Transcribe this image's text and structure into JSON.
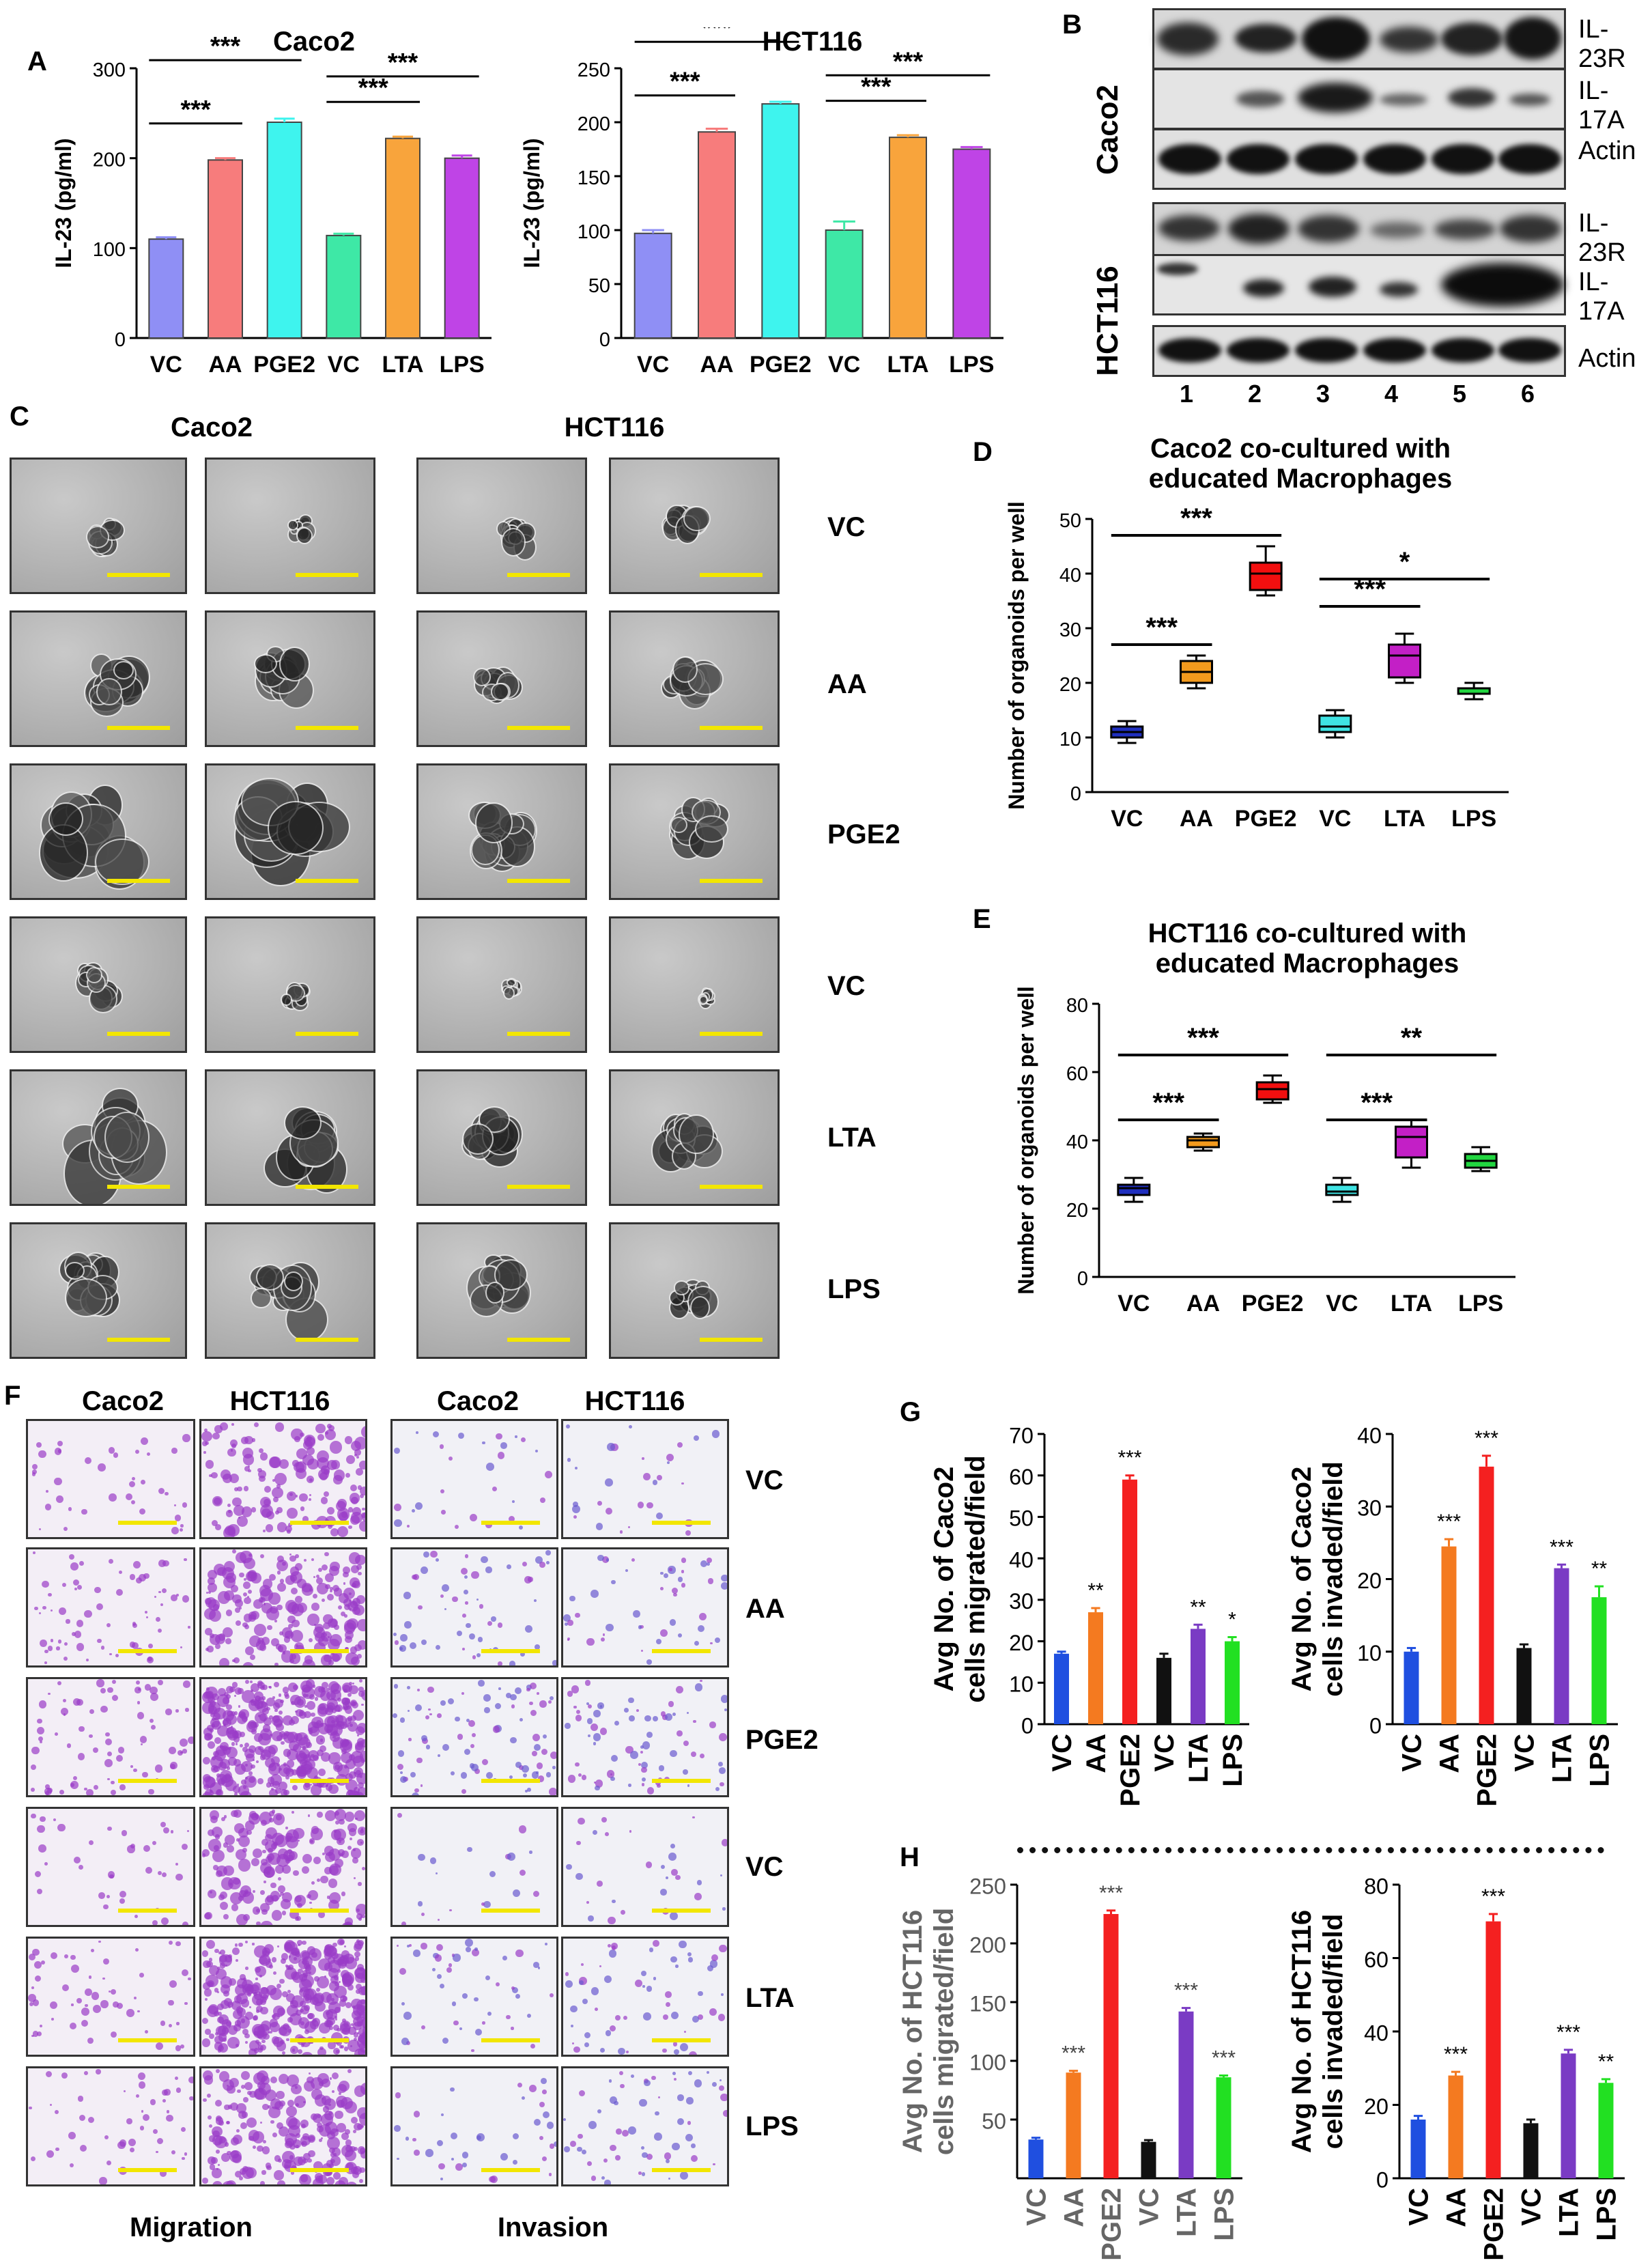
{
  "panel_labels": {
    "A": "A",
    "B": "B",
    "C": "C",
    "D": "D",
    "E": "E",
    "F": "F",
    "G": "G",
    "H": "H"
  },
  "panelC": {
    "col_labels": [
      "Caco2",
      "HCT116"
    ],
    "row_labels": [
      "VC",
      "AA",
      "PGE2",
      "VC",
      "LTA",
      "LPS"
    ]
  },
  "panelF": {
    "col_labels": [
      "Caco2",
      "HCT116",
      "Caco2",
      "HCT116"
    ],
    "row_labels": [
      "VC",
      "AA",
      "PGE2",
      "VC",
      "LTA",
      "LPS"
    ],
    "bottom_labels": [
      "Migration",
      "Invasion"
    ]
  },
  "panelB": {
    "cell_labels": [
      "Caco2",
      "HCT116"
    ],
    "caco2_bands": [
      "IL-23R",
      "IL-17A",
      "Actin"
    ],
    "hct116_bands": [
      "IL-23R",
      "IL-17A",
      "Actin"
    ],
    "lanes": [
      "1",
      "2",
      "3",
      "4",
      "5",
      "6"
    ]
  },
  "colors": {
    "scalebar": "#f2e600",
    "blot_band": "#1a1a1a"
  },
  "chart_data": [
    {
      "id": "A1",
      "type": "bar",
      "title": "Caco2",
      "xlabel": "",
      "ylabel": "IL-23 (pg/ml)",
      "categories": [
        "VC",
        "AA",
        "PGE2",
        "VC",
        "LTA",
        "LPS"
      ],
      "values": [
        110,
        198,
        240,
        114,
        222,
        200
      ],
      "errors": [
        2,
        2,
        4,
        2,
        2,
        3
      ],
      "colors": [
        "#8f8ff5",
        "#f77c7c",
        "#3ef4ee",
        "#3ee8a6",
        "#f8a43c",
        "#bf44e6"
      ],
      "ylim": [
        0,
        300
      ],
      "yticks": [
        0,
        100,
        200,
        300
      ],
      "sig": [
        {
          "from": 0,
          "to": 1,
          "label": "***",
          "level": 0
        },
        {
          "from": 0,
          "to": 2,
          "label": "***",
          "level": 1
        },
        {
          "from": 3,
          "to": 4,
          "label": "***",
          "level": 0
        },
        {
          "from": 3,
          "to": 5,
          "label": "***",
          "level": 1
        }
      ]
    },
    {
      "id": "A2",
      "type": "bar",
      "title": "HCT116",
      "xlabel": "",
      "ylabel": "IL-23 (pg/ml)",
      "categories": [
        "VC",
        "AA",
        "PGE2",
        "VC",
        "LTA",
        "LPS"
      ],
      "values": [
        97,
        191,
        217,
        100,
        186,
        175
      ],
      "errors": [
        3,
        3,
        2,
        8,
        2,
        2
      ],
      "colors": [
        "#8f8ff5",
        "#f77c7c",
        "#3ef4ee",
        "#3ee8a6",
        "#f8a43c",
        "#bf44e6"
      ],
      "ylim": [
        0,
        250
      ],
      "yticks": [
        0,
        50,
        100,
        150,
        200,
        250
      ],
      "sig": [
        {
          "from": 0,
          "to": 1,
          "label": "***",
          "level": 0
        },
        {
          "from": 0,
          "to": 2,
          "label": "***",
          "level": 1
        },
        {
          "from": 3,
          "to": 4,
          "label": "***",
          "level": 0
        },
        {
          "from": 3,
          "to": 5,
          "label": "***",
          "level": 1
        }
      ]
    },
    {
      "id": "D",
      "type": "box",
      "title": "Caco2 co-cultured with educated Macrophages",
      "title_lines": [
        "Caco2 co-cultured with",
        "educated Macrophages"
      ],
      "xlabel": "",
      "ylabel": "Number of organoids per well",
      "categories": [
        "VC",
        "AA",
        "PGE2",
        "VC",
        "LTA",
        "LPS"
      ],
      "boxes": [
        [
          9,
          10,
          11,
          12,
          13
        ],
        [
          19,
          20,
          22,
          24,
          25
        ],
        [
          36,
          37,
          40,
          42,
          45
        ],
        [
          10,
          11,
          12,
          14,
          15
        ],
        [
          20,
          21,
          25,
          27,
          29
        ],
        [
          17,
          18,
          18,
          19,
          20
        ]
      ],
      "colors": [
        "#1f2fbf",
        "#f39a1d",
        "#f20f0f",
        "#3fe3e3",
        "#c31fc6",
        "#22d640"
      ],
      "ylim": [
        0,
        50
      ],
      "yticks": [
        0,
        10,
        20,
        30,
        40,
        50
      ],
      "sig": [
        {
          "from": 0,
          "to": 1,
          "label": "***",
          "y": 27
        },
        {
          "from": 0,
          "to": 2,
          "label": "***",
          "y": 47
        },
        {
          "from": 3,
          "to": 4,
          "label": "***",
          "y": 34
        },
        {
          "from": 3,
          "to": 5,
          "label": "*",
          "y": 39
        }
      ]
    },
    {
      "id": "E",
      "type": "box",
      "title": "HCT116 co-cultured with educated Macrophages",
      "title_lines": [
        "HCT116 co-cultured with",
        "educated Macrophages"
      ],
      "xlabel": "",
      "ylabel": "Number of organoids per well",
      "categories": [
        "VC",
        "AA",
        "PGE2",
        "VC",
        "LTA",
        "LPS"
      ],
      "boxes": [
        [
          22,
          24,
          26,
          27,
          29
        ],
        [
          37,
          38,
          40,
          41,
          42
        ],
        [
          51,
          52,
          55,
          57,
          59
        ],
        [
          22,
          24,
          25,
          27,
          29
        ],
        [
          32,
          35,
          41,
          44,
          46
        ],
        [
          31,
          32,
          34,
          36,
          38
        ]
      ],
      "colors": [
        "#1f2fbf",
        "#f39a1d",
        "#f20f0f",
        "#3fe3e3",
        "#c31fc6",
        "#22d640"
      ],
      "ylim": [
        0,
        80
      ],
      "yticks": [
        0,
        20,
        40,
        60,
        80
      ],
      "sig": [
        {
          "from": 0,
          "to": 1,
          "label": "***",
          "y": 46
        },
        {
          "from": 0,
          "to": 2,
          "label": "***",
          "y": 65
        },
        {
          "from": 3,
          "to": 4,
          "label": "***",
          "y": 46
        },
        {
          "from": 3,
          "to": 5,
          "label": "**",
          "y": 65
        }
      ]
    },
    {
      "id": "G1",
      "type": "bar",
      "title": "",
      "xlabel": "",
      "ylabel_lines": [
        "Avg No. of Caco2",
        "cells migrated/field"
      ],
      "categories": [
        "VC",
        "AA",
        "PGE2",
        "VC",
        "LTA",
        "LPS"
      ],
      "values": [
        17,
        27,
        59,
        16,
        23,
        20
      ],
      "errors": [
        0.5,
        1,
        1,
        1,
        1,
        1
      ],
      "colors": [
        "#1f4fe0",
        "#f47a20",
        "#f42020",
        "#111111",
        "#7a3bc4",
        "#22e022"
      ],
      "ylim": [
        0,
        70
      ],
      "yticks": [
        0,
        10,
        20,
        30,
        40,
        50,
        60,
        70
      ],
      "stars": [
        "",
        "**",
        "***",
        "",
        "**",
        "*"
      ]
    },
    {
      "id": "G2",
      "type": "bar",
      "title": "",
      "xlabel": "",
      "ylabel_lines": [
        "Avg No. of Caco2",
        "cells invaded/field"
      ],
      "categories": [
        "VC",
        "AA",
        "PGE2",
        "VC",
        "LTA",
        "LPS"
      ],
      "values": [
        10,
        24.5,
        35.5,
        10.5,
        21.5,
        17.5
      ],
      "errors": [
        0.5,
        1,
        1.5,
        0.5,
        0.5,
        1.5
      ],
      "colors": [
        "#1f4fe0",
        "#f47a20",
        "#f42020",
        "#111111",
        "#7a3bc4",
        "#22e022"
      ],
      "ylim": [
        0,
        40
      ],
      "yticks": [
        0,
        10,
        20,
        30,
        40
      ],
      "stars": [
        "",
        "***",
        "***",
        "",
        "***",
        "**"
      ]
    },
    {
      "id": "H1",
      "type": "bar",
      "title": "",
      "xlabel": "",
      "ylabel_lines": [
        "Avg No. of HCT116",
        "cells migrated/field"
      ],
      "categories": [
        "VC",
        "AA",
        "PGE2",
        "VC",
        "LTA",
        "LPS"
      ],
      "values": [
        33,
        90,
        225,
        31,
        142,
        86
      ],
      "errors": [
        1.5,
        1.5,
        3,
        1.5,
        3,
        1.5
      ],
      "colors": [
        "#1f4fe0",
        "#f47a20",
        "#f42020",
        "#111111",
        "#7a3bc4",
        "#22e022"
      ],
      "ylim": [
        0,
        250
      ],
      "yticks": [
        50,
        100,
        150,
        200,
        250
      ],
      "stars": [
        "",
        "***",
        "***",
        "",
        "***",
        "***"
      ]
    },
    {
      "id": "H2",
      "type": "bar",
      "title": "",
      "xlabel": "",
      "ylabel_lines": [
        "Avg No. of HCT116",
        "cells invaded/field"
      ],
      "categories": [
        "VC",
        "AA",
        "PGE2",
        "VC",
        "LTA",
        "LPS"
      ],
      "values": [
        16,
        28,
        70,
        15,
        34,
        26
      ],
      "errors": [
        1,
        1,
        2,
        1,
        1,
        1
      ],
      "colors": [
        "#1f4fe0",
        "#f47a20",
        "#f42020",
        "#111111",
        "#7a3bc4",
        "#22e022"
      ],
      "ylim": [
        0,
        80
      ],
      "yticks": [
        0,
        20,
        40,
        60,
        80
      ],
      "stars": [
        "",
        "***",
        "***",
        "",
        "***",
        "**"
      ]
    }
  ]
}
